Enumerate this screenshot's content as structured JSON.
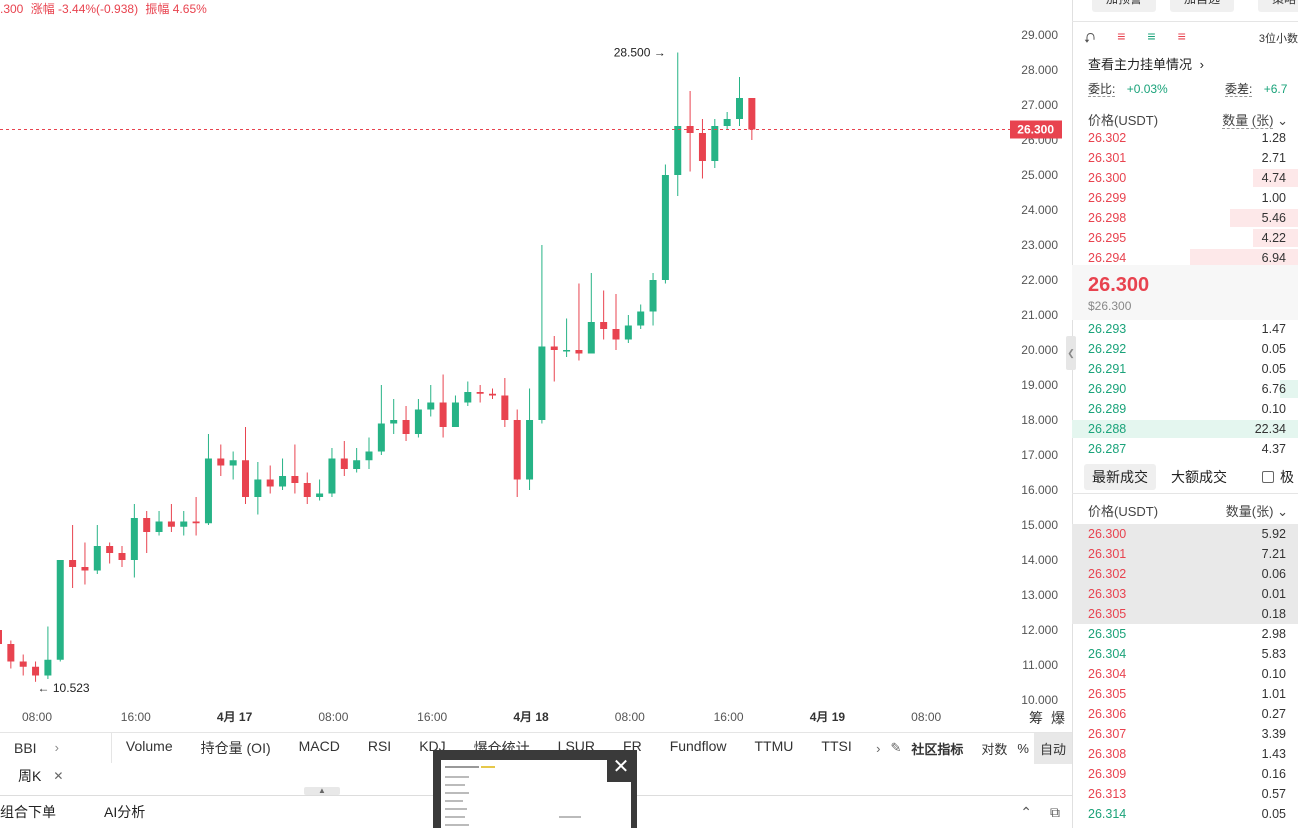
{
  "top_stats": {
    "price": ".300",
    "change": "涨幅 -3.44%(-0.938)",
    "amplitude": "振幅 4.65%"
  },
  "chart_data": {
    "type": "candlestick",
    "y_ticks": [
      "29.000",
      "28.000",
      "27.000",
      "26.000",
      "25.000",
      "24.000",
      "23.000",
      "22.000",
      "21.000",
      "20.000",
      "19.000",
      "18.000",
      "17.000",
      "16.000",
      "15.000",
      "14.000",
      "13.000",
      "12.000",
      "11.000",
      "10.000"
    ],
    "ylim": [
      9.6,
      29.6
    ],
    "x_ticks": [
      "08:00",
      "16:00",
      "4月 17",
      "08:00",
      "16:00",
      "4月 18",
      "08:00",
      "16:00",
      "4月 19",
      "08:00"
    ],
    "x_tick_bold": [
      false,
      false,
      true,
      false,
      false,
      true,
      false,
      false,
      true,
      false
    ],
    "current_price_label": "26.300",
    "current_price": 26.3,
    "high_label": "28.500",
    "low_label": "10.523",
    "candles": [
      [
        12.0,
        11.6,
        12.05,
        11.4
      ],
      [
        11.6,
        11.1,
        11.7,
        10.9
      ],
      [
        11.1,
        10.95,
        11.3,
        10.7
      ],
      [
        10.95,
        10.7,
        11.1,
        10.52
      ],
      [
        10.7,
        11.15,
        12.1,
        10.6
      ],
      [
        11.15,
        14.0,
        14.0,
        11.1
      ],
      [
        14.0,
        13.8,
        15.0,
        13.2
      ],
      [
        13.8,
        13.7,
        14.5,
        13.3
      ],
      [
        13.7,
        14.4,
        15.0,
        13.6
      ],
      [
        14.4,
        14.2,
        14.5,
        13.9
      ],
      [
        14.2,
        14.0,
        14.4,
        13.8
      ],
      [
        14.0,
        15.2,
        15.6,
        13.5
      ],
      [
        15.2,
        14.8,
        15.4,
        14.2
      ],
      [
        14.8,
        15.1,
        15.4,
        14.7
      ],
      [
        15.1,
        14.95,
        15.6,
        14.8
      ],
      [
        14.95,
        15.1,
        15.4,
        14.7
      ],
      [
        15.1,
        15.05,
        15.8,
        14.7
      ],
      [
        15.05,
        16.9,
        17.6,
        15.0
      ],
      [
        16.9,
        16.7,
        17.3,
        16.4
      ],
      [
        16.7,
        16.85,
        17.1,
        16.3
      ],
      [
        16.85,
        15.8,
        17.8,
        15.6
      ],
      [
        15.8,
        16.3,
        16.8,
        15.3
      ],
      [
        16.3,
        16.1,
        16.7,
        15.9
      ],
      [
        16.1,
        16.4,
        16.9,
        16.0
      ],
      [
        16.4,
        16.2,
        17.3,
        15.9
      ],
      [
        16.2,
        15.8,
        16.5,
        15.6
      ],
      [
        15.8,
        15.9,
        16.3,
        15.7
      ],
      [
        15.9,
        16.9,
        17.2,
        15.8
      ],
      [
        16.9,
        16.6,
        17.4,
        16.4
      ],
      [
        16.6,
        16.85,
        17.2,
        16.5
      ],
      [
        16.85,
        17.1,
        17.5,
        16.6
      ],
      [
        17.1,
        17.9,
        19.0,
        17.0
      ],
      [
        17.9,
        18.0,
        18.6,
        17.6
      ],
      [
        18.0,
        17.6,
        18.4,
        17.4
      ],
      [
        17.6,
        18.3,
        18.6,
        17.5
      ],
      [
        18.3,
        18.5,
        19.0,
        18.1
      ],
      [
        18.5,
        17.8,
        19.3,
        17.5
      ],
      [
        17.8,
        18.5,
        18.7,
        17.8
      ],
      [
        18.5,
        18.8,
        19.1,
        18.4
      ],
      [
        18.8,
        18.75,
        19.0,
        18.5
      ],
      [
        18.75,
        18.7,
        18.9,
        18.6
      ],
      [
        18.7,
        18.0,
        19.2,
        17.8
      ],
      [
        18.0,
        16.3,
        18.3,
        15.8
      ],
      [
        16.3,
        18.0,
        18.9,
        16.0
      ],
      [
        18.0,
        20.1,
        23.0,
        17.9
      ],
      [
        20.1,
        20.0,
        20.4,
        19.1
      ],
      [
        20.0,
        20.0,
        20.9,
        19.8
      ],
      [
        20.0,
        19.9,
        21.9,
        19.7
      ],
      [
        19.9,
        20.8,
        22.2,
        19.9
      ],
      [
        20.8,
        20.6,
        21.7,
        20.3
      ],
      [
        20.6,
        20.3,
        21.6,
        20.0
      ],
      [
        20.3,
        20.7,
        21.0,
        20.2
      ],
      [
        20.7,
        21.1,
        21.3,
        20.6
      ],
      [
        21.1,
        22.0,
        22.2,
        20.7
      ],
      [
        22.0,
        25.0,
        25.3,
        21.9
      ],
      [
        25.0,
        26.4,
        28.5,
        24.4
      ],
      [
        26.4,
        26.2,
        27.4,
        25.1
      ],
      [
        26.2,
        25.4,
        26.6,
        24.9
      ],
      [
        25.4,
        26.4,
        26.6,
        25.2
      ],
      [
        26.4,
        26.6,
        26.8,
        26.3
      ],
      [
        26.6,
        27.2,
        27.8,
        26.4
      ],
      [
        27.2,
        26.3,
        27.2,
        26.0
      ]
    ]
  },
  "indicators": {
    "left": "BBI",
    "items": [
      "Volume",
      "持仓量 (OI)",
      "MACD",
      "RSI",
      "KDJ",
      "爆仓统计",
      "LSUR",
      "FR",
      "Fundflow",
      "TTMU",
      "TTSI"
    ],
    "community": "社区指标",
    "log": "对数",
    "pct": "%",
    "auto": "自动"
  },
  "period_tag": "周K",
  "bottom": {
    "b1": "组合下单",
    "b2": "AI分析"
  },
  "orderbook": {
    "top_buttons": [
      "加预警",
      "加自选",
      "策略"
    ],
    "precision": "3位小数",
    "main_head": "查看主力挂单情况",
    "weibi_label": "委比:",
    "weibi_value": "+0.03%",
    "weicha_label": "委差:",
    "weicha_value": "+6.7",
    "col_price": "价格(USDT)",
    "col_qty": "数量 (张)",
    "asks": [
      {
        "p": "26.302",
        "q": "1.28",
        "w": 0
      },
      {
        "p": "26.301",
        "q": "2.71",
        "w": 0
      },
      {
        "p": "26.300",
        "q": "4.74",
        "w": 0.2
      },
      {
        "p": "26.299",
        "q": "1.00",
        "w": 0
      },
      {
        "p": "26.298",
        "q": "5.46",
        "w": 0.3
      },
      {
        "p": "26.295",
        "q": "4.22",
        "w": 0.2
      },
      {
        "p": "26.294",
        "q": "6.94",
        "w": 0.48
      }
    ],
    "last_price": "26.300",
    "last_price_usd": "$26.300",
    "bids": [
      {
        "p": "26.293",
        "q": "1.47",
        "w": 0
      },
      {
        "p": "26.292",
        "q": "0.05",
        "w": 0
      },
      {
        "p": "26.291",
        "q": "0.05",
        "w": 0
      },
      {
        "p": "26.290",
        "q": "6.76",
        "w": 0.08
      },
      {
        "p": "26.289",
        "q": "0.10",
        "w": 0
      },
      {
        "p": "26.288",
        "q": "22.34",
        "w": 1.0
      },
      {
        "p": "26.287",
        "q": "4.37",
        "w": 0
      }
    ],
    "tabs": [
      "最新成交",
      "大额成交",
      "极"
    ],
    "trade_col_price": "价格(USDT)",
    "trade_col_qty": "数量(张)",
    "trades": [
      {
        "p": "26.300",
        "q": "5.92",
        "side": "red",
        "hl": true
      },
      {
        "p": "26.301",
        "q": "7.21",
        "side": "red",
        "hl": true
      },
      {
        "p": "26.302",
        "q": "0.06",
        "side": "red",
        "hl": true
      },
      {
        "p": "26.303",
        "q": "0.01",
        "side": "red",
        "hl": true
      },
      {
        "p": "26.305",
        "q": "0.18",
        "side": "red",
        "hl": true
      },
      {
        "p": "26.305",
        "q": "2.98",
        "side": "green",
        "hl": false
      },
      {
        "p": "26.304",
        "q": "5.83",
        "side": "green",
        "hl": false
      },
      {
        "p": "26.304",
        "q": "0.10",
        "side": "red",
        "hl": false
      },
      {
        "p": "26.305",
        "q": "1.01",
        "side": "red",
        "hl": false
      },
      {
        "p": "26.306",
        "q": "0.27",
        "side": "red",
        "hl": false
      },
      {
        "p": "26.307",
        "q": "3.39",
        "side": "red",
        "hl": false
      },
      {
        "p": "26.308",
        "q": "1.43",
        "side": "red",
        "hl": false
      },
      {
        "p": "26.309",
        "q": "0.16",
        "side": "red",
        "hl": false
      },
      {
        "p": "26.313",
        "q": "0.57",
        "side": "red",
        "hl": false
      },
      {
        "p": "26.314",
        "q": "0.05",
        "side": "green",
        "hl": false
      }
    ]
  },
  "colors": {
    "up": "#26b386",
    "down": "#e8434f"
  }
}
